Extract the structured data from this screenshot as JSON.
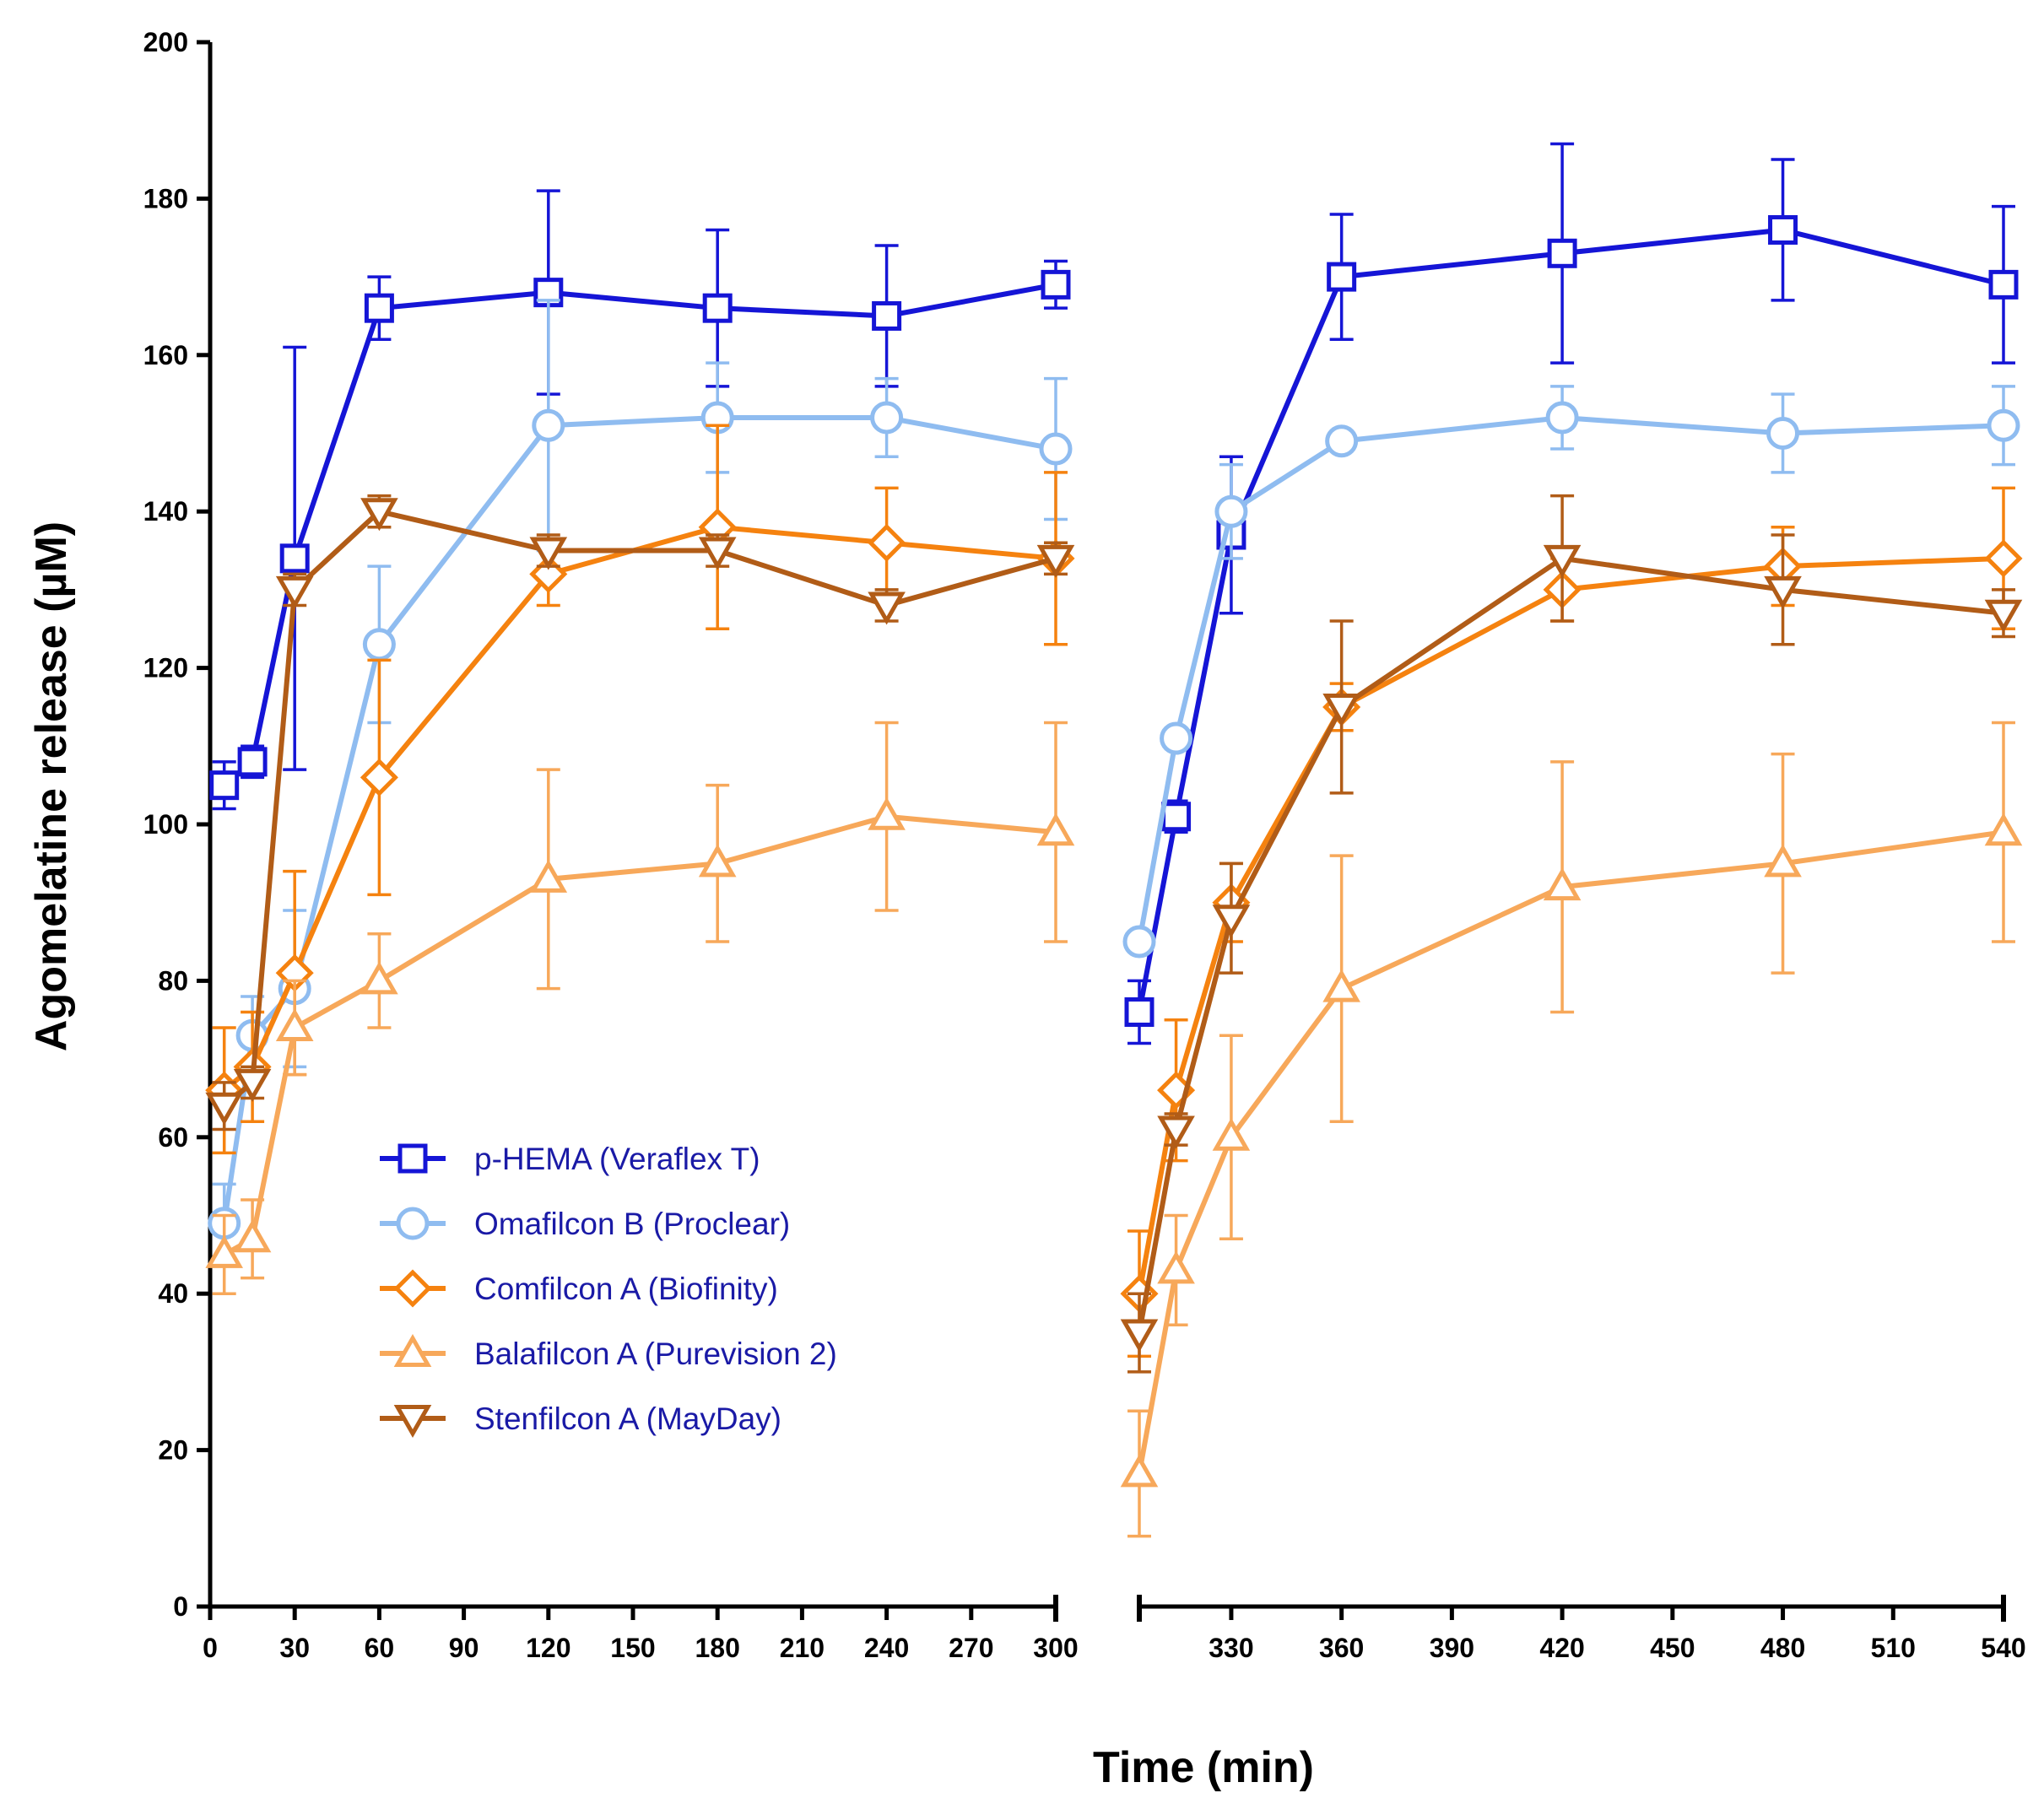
{
  "chart_data": {
    "type": "line",
    "xlabel": "Time (min)",
    "ylabel": "Agomelatine release (µM)",
    "ylim": [
      0,
      200
    ],
    "y_ticks": [
      0,
      20,
      40,
      60,
      80,
      100,
      120,
      140,
      160,
      180,
      200
    ],
    "x_segments": [
      {
        "xlim": [
          0,
          300
        ],
        "ticks": [
          0,
          30,
          60,
          90,
          120,
          150,
          180,
          210,
          240,
          270,
          300
        ]
      },
      {
        "xlim": [
          305,
          540
        ],
        "ticks": [
          330,
          360,
          390,
          420,
          450,
          480,
          510,
          540
        ]
      }
    ],
    "grid": false,
    "legend_position": "lower-left",
    "series": [
      {
        "name": "p-HEMA (Veraflex T)",
        "color": "#1515d6",
        "marker": "square-open",
        "segments": [
          {
            "x": [
              5,
              15,
              30,
              60,
              120,
              180,
              240,
              300
            ],
            "y": [
              105,
              108,
              134,
              166,
              168,
              166,
              165,
              169
            ],
            "err": [
              3,
              2,
              27,
              4,
              13,
              10,
              9,
              3
            ]
          },
          {
            "x": [
              305,
              315,
              330,
              360,
              420,
              480,
              540
            ],
            "y": [
              76,
              101,
              137,
              170,
              173,
              176,
              169
            ],
            "err": [
              4,
              2,
              10,
              8,
              14,
              9,
              10
            ]
          }
        ]
      },
      {
        "name": "Omafilcon B (Proclear)",
        "color": "#8fbcf0",
        "marker": "circle-open",
        "segments": [
          {
            "x": [
              5,
              15,
              30,
              60,
              120,
              180,
              240,
              300
            ],
            "y": [
              49,
              73,
              79,
              123,
              151,
              152,
              152,
              148
            ],
            "err": [
              5,
              5,
              10,
              10,
              16,
              7,
              5,
              9
            ]
          },
          {
            "x": [
              305,
              315,
              330,
              360,
              420,
              480,
              540
            ],
            "y": [
              85,
              111,
              140,
              149,
              152,
              150,
              151
            ],
            "err": [
              1,
              1,
              6,
              1,
              4,
              5,
              5
            ]
          }
        ]
      },
      {
        "name": "Comfilcon A (Biofinity)",
        "color": "#f5820f",
        "marker": "diamond-open",
        "segments": [
          {
            "x": [
              5,
              15,
              30,
              60,
              120,
              180,
              240,
              300
            ],
            "y": [
              66,
              69,
              81,
              106,
              132,
              138,
              136,
              134
            ],
            "err": [
              8,
              7,
              13,
              15,
              4,
              13,
              7,
              11
            ]
          },
          {
            "x": [
              305,
              315,
              330,
              360,
              420,
              480,
              540
            ],
            "y": [
              40,
              66,
              90,
              115,
              130,
              133,
              134
            ],
            "err": [
              8,
              9,
              5,
              3,
              4,
              5,
              9
            ]
          }
        ]
      },
      {
        "name": "Balafilcon A (Purevision 2)",
        "color": "#f7a85a",
        "marker": "triangle-up-open",
        "segments": [
          {
            "x": [
              5,
              15,
              30,
              60,
              120,
              180,
              240,
              300
            ],
            "y": [
              45,
              47,
              74,
              80,
              93,
              95,
              101,
              99
            ],
            "err": [
              5,
              5,
              6,
              6,
              14,
              10,
              12,
              14
            ]
          },
          {
            "x": [
              305,
              315,
              330,
              360,
              420,
              480,
              540
            ],
            "y": [
              17,
              43,
              60,
              79,
              92,
              95,
              99
            ],
            "err": [
              8,
              7,
              13,
              17,
              16,
              14,
              14
            ]
          }
        ]
      },
      {
        "name": "Stenfilcon A (MayDay)",
        "color": "#b15c17",
        "marker": "triangle-down-open",
        "segments": [
          {
            "x": [
              5,
              15,
              30,
              60,
              120,
              180,
              240,
              300
            ],
            "y": [
              64,
              67,
              130,
              140,
              135,
              135,
              128,
              134
            ],
            "err": [
              3,
              2,
              2,
              2,
              2,
              2,
              2,
              2
            ]
          },
          {
            "x": [
              305,
              315,
              330,
              360,
              420,
              480,
              540
            ],
            "y": [
              35,
              61,
              88,
              115,
              134,
              130,
              127
            ],
            "err": [
              5,
              2,
              7,
              11,
              8,
              7,
              3
            ]
          }
        ]
      }
    ]
  }
}
